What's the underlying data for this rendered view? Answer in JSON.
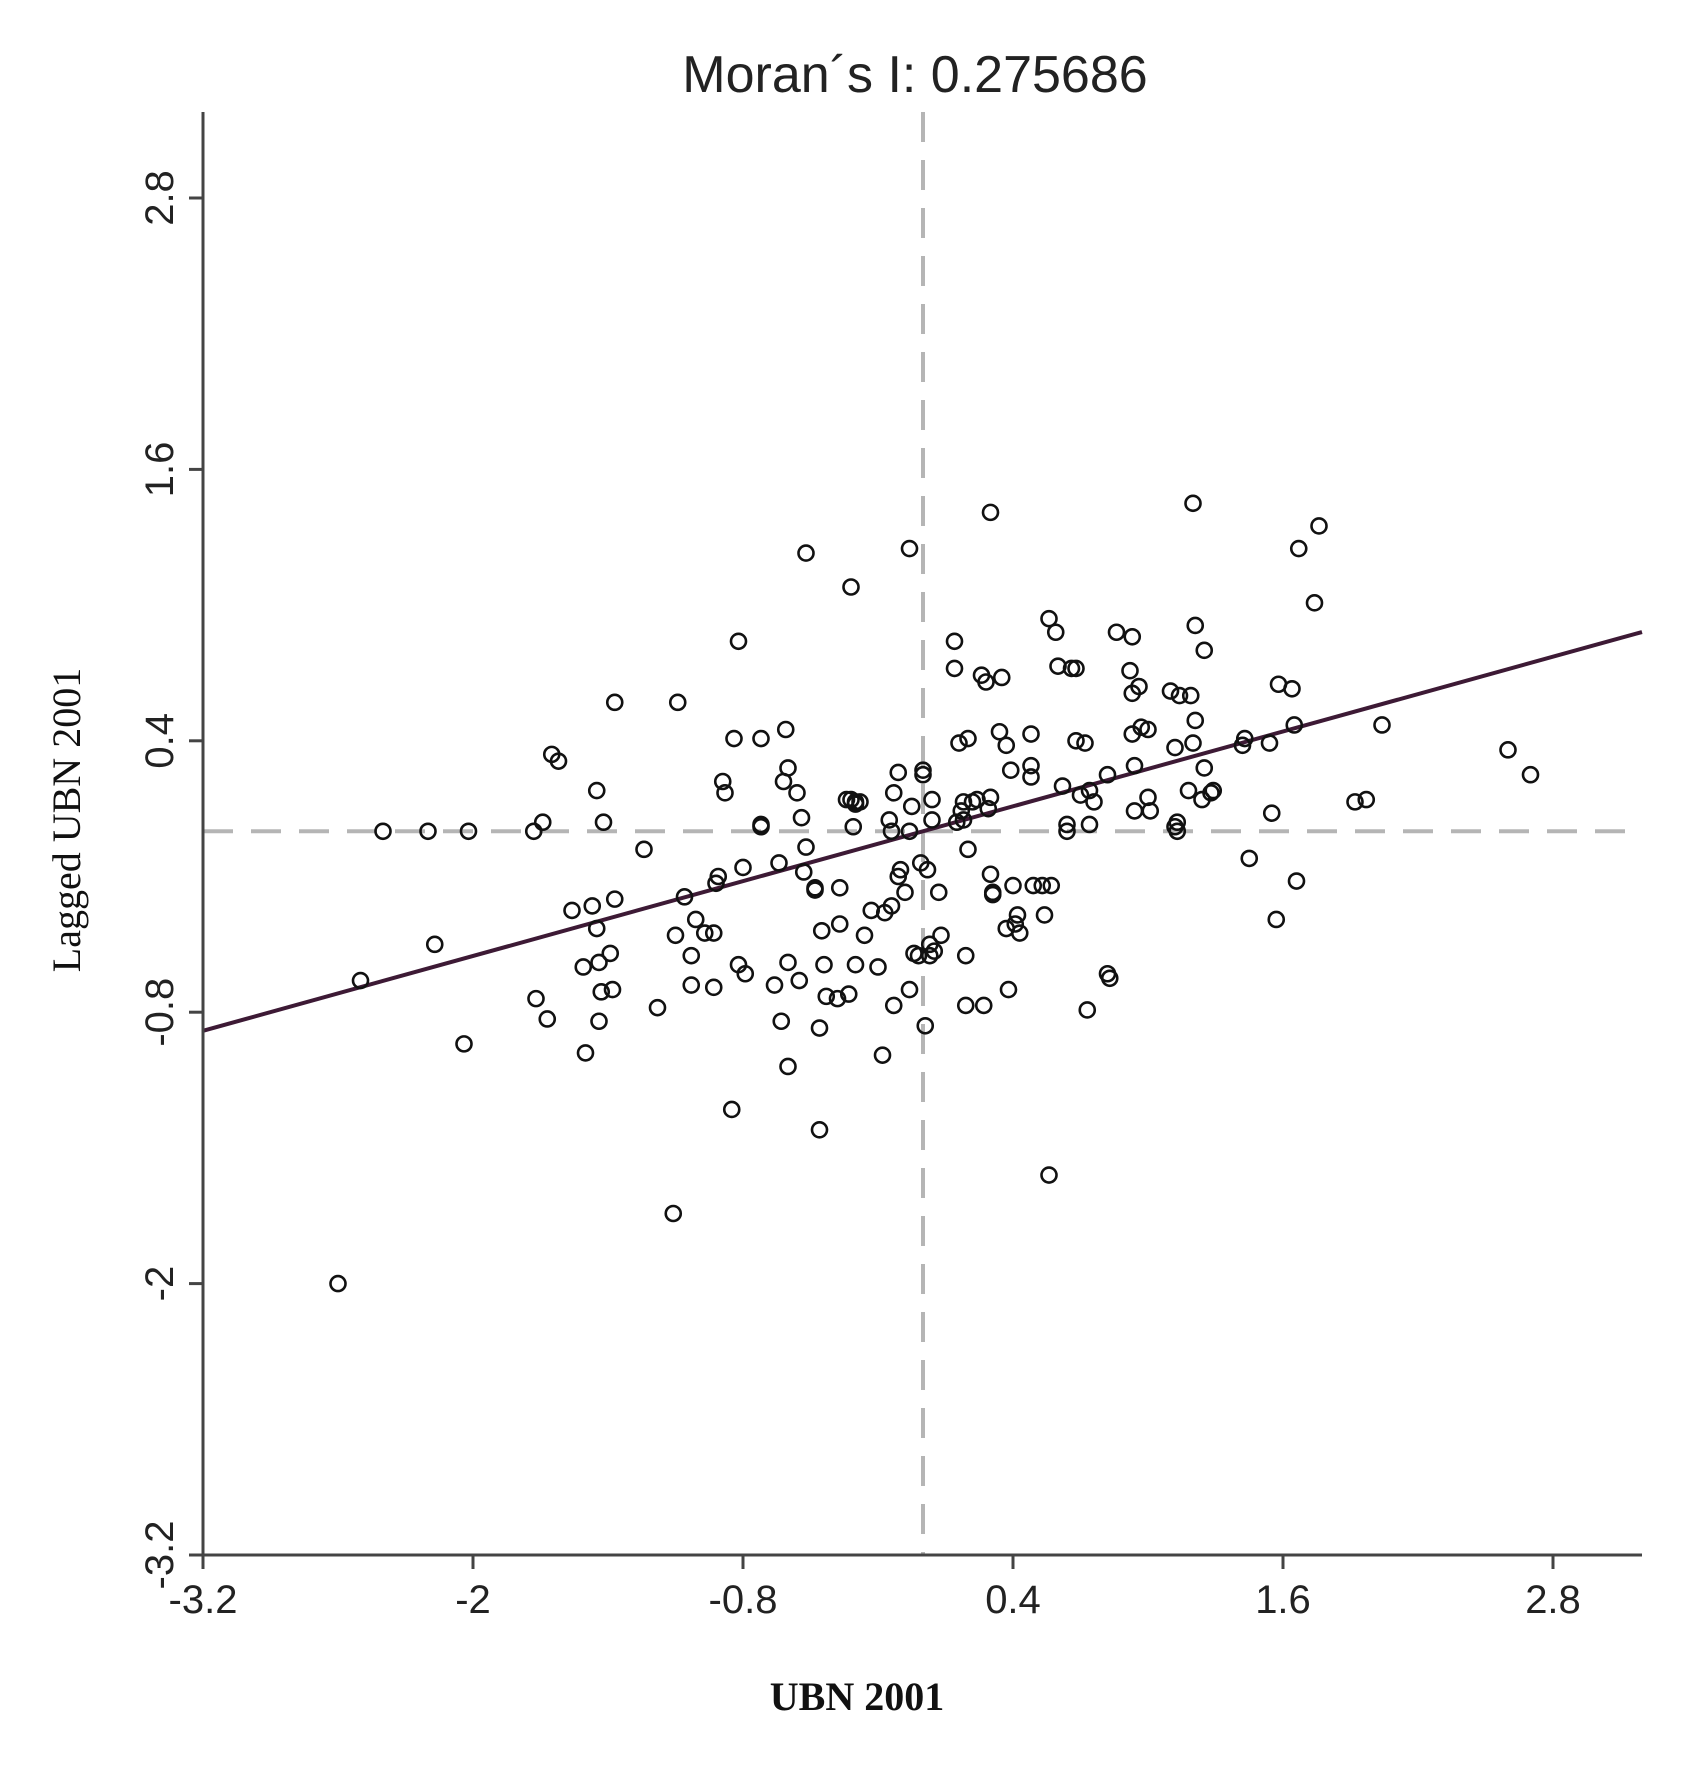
{
  "chart_data": {
    "type": "scatter",
    "title": "Moran´s I: 0.275686",
    "xlabel": "UBN 2001",
    "ylabel": "Lagged UBN 2001",
    "xlim": [
      -3.2,
      3.2
    ],
    "ylim": [
      -3.2,
      3.2
    ],
    "xticks": [
      -3.2,
      -2,
      -0.8,
      0.4,
      1.6,
      2.8
    ],
    "yticks": [
      -3.2,
      -2,
      -0.8,
      0.4,
      1.6,
      2.8
    ],
    "xtick_labels": [
      "-3.2",
      "-2",
      "-0.8",
      "0.4",
      "1.6",
      "2.8"
    ],
    "ytick_labels": [
      "-3.2",
      "-2",
      "-0.8",
      "0.4",
      "1.6",
      "2.8"
    ],
    "mean_x": 0.0,
    "mean_y": 0.0,
    "regression": {
      "slope": 0.2757,
      "intercept": 0.0,
      "color": "#3d1a35"
    },
    "marker_color": "#111111",
    "reference_line_color": "#b5b5b5",
    "axis_color": "#444444",
    "points": [
      [
        -2.6,
        -2.0
      ],
      [
        -2.5,
        -0.66
      ],
      [
        -2.4,
        0.0
      ],
      [
        -2.2,
        0.0
      ],
      [
        -2.17,
        -0.5
      ],
      [
        -2.04,
        -0.94
      ],
      [
        -2.02,
        0.0
      ],
      [
        -1.72,
        -0.74
      ],
      [
        -1.73,
        0.0
      ],
      [
        -1.69,
        0.04
      ],
      [
        -1.67,
        -0.83
      ],
      [
        -1.65,
        0.34
      ],
      [
        -1.62,
        0.31
      ],
      [
        -1.56,
        -0.35
      ],
      [
        -1.51,
        -0.6
      ],
      [
        -1.5,
        -0.98
      ],
      [
        -1.47,
        -0.33
      ],
      [
        -1.45,
        0.18
      ],
      [
        -1.45,
        -0.43
      ],
      [
        -1.44,
        -0.58
      ],
      [
        -1.43,
        -0.71
      ],
      [
        -1.42,
        0.04
      ],
      [
        -1.44,
        -0.84
      ],
      [
        -1.39,
        -0.54
      ],
      [
        -1.38,
        -0.7
      ],
      [
        -1.37,
        -0.3
      ],
      [
        -1.37,
        0.57
      ],
      [
        -1.24,
        -0.08
      ],
      [
        -1.18,
        -0.78
      ],
      [
        -1.09,
        0.57
      ],
      [
        -1.1,
        -0.46
      ],
      [
        -1.11,
        -1.69
      ],
      [
        -1.06,
        -0.29
      ],
      [
        -1.03,
        -0.55
      ],
      [
        -1.03,
        -0.68
      ],
      [
        -1.01,
        -0.39
      ],
      [
        -0.97,
        -0.45
      ],
      [
        -0.93,
        -0.45
      ],
      [
        -0.93,
        -0.69
      ],
      [
        -0.92,
        -0.23
      ],
      [
        -0.91,
        -0.2
      ],
      [
        -0.89,
        0.22
      ],
      [
        -0.88,
        0.17
      ],
      [
        -0.85,
        -1.23
      ],
      [
        -0.84,
        0.41
      ],
      [
        -0.82,
        -0.59
      ],
      [
        -0.82,
        0.84
      ],
      [
        -0.8,
        -0.16
      ],
      [
        -0.79,
        -0.63
      ],
      [
        -0.72,
        0.41
      ],
      [
        -0.72,
        0.03
      ],
      [
        -0.72,
        0.02
      ],
      [
        -0.66,
        -0.68
      ],
      [
        -0.64,
        -0.14
      ],
      [
        -0.63,
        -0.84
      ],
      [
        -0.62,
        0.22
      ],
      [
        -0.6,
        0.28
      ],
      [
        -0.61,
        0.45
      ],
      [
        -0.6,
        -0.58
      ],
      [
        -0.6,
        -1.04
      ],
      [
        -0.56,
        0.17
      ],
      [
        -0.55,
        -0.66
      ],
      [
        -0.54,
        0.06
      ],
      [
        -0.53,
        -0.18
      ],
      [
        -0.52,
        -0.07
      ],
      [
        -0.52,
        1.23
      ],
      [
        -0.48,
        -0.26
      ],
      [
        -0.48,
        -0.25
      ],
      [
        -0.46,
        -0.87
      ],
      [
        -0.46,
        -1.32
      ],
      [
        -0.45,
        -0.44
      ],
      [
        -0.44,
        -0.59
      ],
      [
        -0.43,
        -0.73
      ],
      [
        -0.38,
        -0.74
      ],
      [
        -0.37,
        -0.25
      ],
      [
        -0.37,
        -0.41
      ],
      [
        -0.34,
        0.14
      ],
      [
        -0.33,
        -0.72
      ],
      [
        -0.32,
        0.14
      ],
      [
        -0.31,
        0.02
      ],
      [
        -0.3,
        0.13
      ],
      [
        -0.3,
        0.12
      ],
      [
        -0.32,
        1.08
      ],
      [
        -0.28,
        0.13
      ],
      [
        -0.3,
        -0.59
      ],
      [
        -0.26,
        -0.46
      ],
      [
        -0.23,
        -0.35
      ],
      [
        -0.2,
        -0.6
      ],
      [
        -0.18,
        -0.99
      ],
      [
        -0.17,
        -0.36
      ],
      [
        -0.15,
        0.05
      ],
      [
        -0.14,
        0.0
      ],
      [
        -0.14,
        -0.33
      ],
      [
        -0.13,
        0.17
      ],
      [
        -0.13,
        -0.77
      ],
      [
        -0.11,
        0.26
      ],
      [
        -0.11,
        -0.2
      ],
      [
        -0.1,
        -0.17
      ],
      [
        -0.08,
        -0.27
      ],
      [
        -0.06,
        -0.7
      ],
      [
        -0.06,
        0.0
      ],
      [
        -0.05,
        0.11
      ],
      [
        -0.06,
        1.25
      ],
      [
        -0.04,
        -0.54
      ],
      [
        -0.02,
        -0.55
      ],
      [
        0.0,
        0.25
      ],
      [
        0.0,
        0.27
      ],
      [
        -0.01,
        -0.14
      ],
      [
        0.01,
        -0.86
      ],
      [
        0.02,
        -0.17
      ],
      [
        0.03,
        -0.55
      ],
      [
        0.03,
        -0.5
      ],
      [
        0.04,
        0.14
      ],
      [
        0.04,
        0.05
      ],
      [
        0.05,
        -0.53
      ],
      [
        0.07,
        -0.27
      ],
      [
        0.08,
        -0.46
      ],
      [
        0.14,
        0.72
      ],
      [
        0.14,
        0.84
      ],
      [
        0.15,
        0.04
      ],
      [
        0.16,
        0.39
      ],
      [
        0.17,
        0.09
      ],
      [
        0.18,
        0.13
      ],
      [
        0.18,
        0.05
      ],
      [
        0.19,
        -0.55
      ],
      [
        0.19,
        -0.77
      ],
      [
        0.2,
        0.41
      ],
      [
        0.2,
        -0.08
      ],
      [
        0.22,
        0.13
      ],
      [
        0.24,
        0.14
      ],
      [
        0.27,
        -0.77
      ],
      [
        0.26,
        0.69
      ],
      [
        0.28,
        0.66
      ],
      [
        0.3,
        0.15
      ],
      [
        0.29,
        0.1
      ],
      [
        0.3,
        -0.19
      ],
      [
        0.31,
        -0.27
      ],
      [
        0.31,
        -0.28
      ],
      [
        0.3,
        1.41
      ],
      [
        0.34,
        0.44
      ],
      [
        0.35,
        0.68
      ],
      [
        0.37,
        0.38
      ],
      [
        0.37,
        -0.43
      ],
      [
        0.38,
        -0.7
      ],
      [
        0.39,
        0.27
      ],
      [
        0.4,
        -0.24
      ],
      [
        0.41,
        -0.41
      ],
      [
        0.42,
        -0.37
      ],
      [
        0.43,
        -0.45
      ],
      [
        0.48,
        0.43
      ],
      [
        0.48,
        0.29
      ],
      [
        0.48,
        0.24
      ],
      [
        0.49,
        -0.24
      ],
      [
        0.53,
        -0.24
      ],
      [
        0.54,
        -0.37
      ],
      [
        0.56,
        0.94
      ],
      [
        0.56,
        -1.52
      ],
      [
        0.57,
        -0.24
      ],
      [
        0.59,
        0.88
      ],
      [
        0.6,
        0.73
      ],
      [
        0.62,
        0.2
      ],
      [
        0.64,
        0.03
      ],
      [
        0.64,
        0.0
      ],
      [
        0.66,
        0.72
      ],
      [
        0.68,
        0.4
      ],
      [
        0.68,
        0.72
      ],
      [
        0.7,
        0.16
      ],
      [
        0.72,
        0.39
      ],
      [
        0.73,
        -0.79
      ],
      [
        0.74,
        0.03
      ],
      [
        0.74,
        0.18
      ],
      [
        0.76,
        0.13
      ],
      [
        0.82,
        0.25
      ],
      [
        0.82,
        -0.63
      ],
      [
        0.83,
        -0.65
      ],
      [
        0.86,
        0.88
      ],
      [
        0.92,
        0.71
      ],
      [
        0.93,
        0.86
      ],
      [
        0.93,
        0.61
      ],
      [
        0.93,
        0.43
      ],
      [
        0.94,
        0.29
      ],
      [
        0.94,
        0.09
      ],
      [
        0.96,
        0.64
      ],
      [
        0.97,
        0.46
      ],
      [
        1.0,
        0.45
      ],
      [
        1.0,
        0.15
      ],
      [
        1.01,
        0.09
      ],
      [
        1.1,
        0.62
      ],
      [
        1.12,
        0.37
      ],
      [
        1.12,
        0.02
      ],
      [
        1.13,
        0.0
      ],
      [
        1.13,
        0.04
      ],
      [
        1.14,
        0.6
      ],
      [
        1.18,
        0.18
      ],
      [
        1.19,
        0.6
      ],
      [
        1.2,
        0.39
      ],
      [
        1.21,
        0.49
      ],
      [
        1.2,
        1.45
      ],
      [
        1.21,
        0.91
      ],
      [
        1.24,
        0.14
      ],
      [
        1.25,
        0.28
      ],
      [
        1.25,
        0.8
      ],
      [
        1.28,
        0.17
      ],
      [
        1.29,
        0.18
      ],
      [
        1.42,
        0.38
      ],
      [
        1.43,
        0.41
      ],
      [
        1.45,
        -0.12
      ],
      [
        1.54,
        0.39
      ],
      [
        1.55,
        0.08
      ],
      [
        1.57,
        -0.39
      ],
      [
        1.58,
        0.65
      ],
      [
        1.64,
        0.63
      ],
      [
        1.65,
        0.47
      ],
      [
        1.66,
        -0.22
      ],
      [
        1.67,
        1.25
      ],
      [
        1.74,
        1.01
      ],
      [
        1.76,
        1.35
      ],
      [
        1.92,
        0.13
      ],
      [
        1.97,
        0.14
      ],
      [
        2.04,
        0.47
      ],
      [
        2.6,
        0.36
      ],
      [
        2.7,
        0.25
      ]
    ]
  }
}
